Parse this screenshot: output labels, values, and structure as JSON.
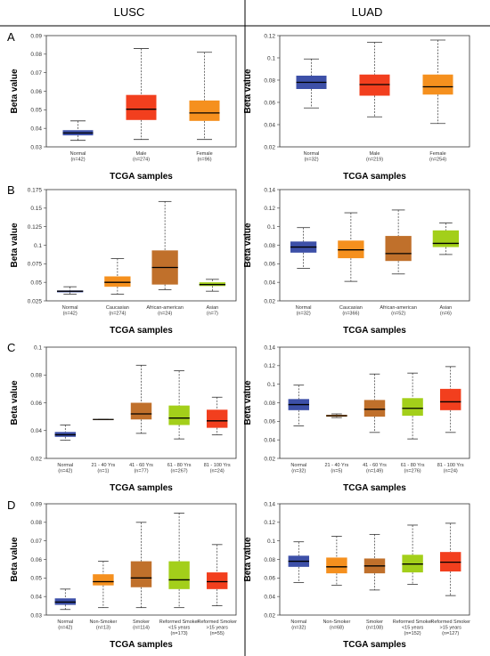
{
  "column_titles": [
    "LUSC",
    "LUAD"
  ],
  "row_labels": [
    "A",
    "B",
    "C",
    "D"
  ],
  "colors": {
    "normal": "#3d50a8",
    "orange": "#f5901e",
    "red": "#f23f1e",
    "brown": "#c0702b",
    "lime": "#a3cf1a",
    "median": "#000000",
    "frame": "#333333"
  },
  "chart_data": [
    {
      "type": "box",
      "panel": "A",
      "cohort": "LUSC",
      "xlabel": "TCGA samples",
      "ylabel": "Beta value",
      "ylim": [
        0.03,
        0.09
      ],
      "yticks": [
        "0.03",
        "0.04",
        "0.05",
        "0.06",
        "0.07",
        "0.08",
        "0.09"
      ],
      "boxes": [
        {
          "label": "Normal",
          "n": "(n=42)",
          "color": "normal",
          "min": 0.0335,
          "q1": 0.0362,
          "median": 0.0375,
          "q3": 0.039,
          "max": 0.044
        },
        {
          "label": "Male",
          "n": "(n=274)",
          "color": "red",
          "min": 0.034,
          "q1": 0.0445,
          "median": 0.0503,
          "q3": 0.058,
          "max": 0.083
        },
        {
          "label": "Female",
          "n": "(n=96)",
          "color": "orange",
          "min": 0.034,
          "q1": 0.044,
          "median": 0.0483,
          "q3": 0.055,
          "max": 0.081
        }
      ]
    },
    {
      "type": "box",
      "panel": "A",
      "cohort": "LUAD",
      "xlabel": "TCGA samples",
      "ylabel": "Beta value",
      "ylim": [
        0.02,
        0.12
      ],
      "yticks": [
        "0.02",
        "0.04",
        "0.06",
        "0.08",
        "0.1",
        "0.12"
      ],
      "boxes": [
        {
          "label": "Normal",
          "n": "(n=32)",
          "color": "normal",
          "min": 0.055,
          "q1": 0.072,
          "median": 0.078,
          "q3": 0.084,
          "max": 0.099
        },
        {
          "label": "Male",
          "n": "(n=219)",
          "color": "red",
          "min": 0.047,
          "q1": 0.066,
          "median": 0.076,
          "q3": 0.085,
          "max": 0.114
        },
        {
          "label": "Female",
          "n": "(n=254)",
          "color": "orange",
          "min": 0.041,
          "q1": 0.067,
          "median": 0.074,
          "q3": 0.085,
          "max": 0.116
        }
      ]
    },
    {
      "type": "box",
      "panel": "B",
      "cohort": "LUSC",
      "xlabel": "TCGA samples",
      "ylabel": "Beta value",
      "ylim": [
        0.025,
        0.175
      ],
      "yticks": [
        "0.025",
        "0.05",
        "0.075",
        "0.1",
        "0.125",
        "0.15",
        "0.175"
      ],
      "boxes": [
        {
          "label": "Normal",
          "n": "(n=42)",
          "color": "normal",
          "min": 0.034,
          "q1": 0.0365,
          "median": 0.038,
          "q3": 0.039,
          "max": 0.044
        },
        {
          "label": "Caucasian",
          "n": "(n=274)",
          "color": "orange",
          "min": 0.034,
          "q1": 0.044,
          "median": 0.05,
          "q3": 0.058,
          "max": 0.082
        },
        {
          "label": "African-american",
          "n": "(n=24)",
          "color": "brown",
          "min": 0.04,
          "q1": 0.047,
          "median": 0.07,
          "q3": 0.093,
          "max": 0.159
        },
        {
          "label": "Asian",
          "n": "(n=7)",
          "color": "lime",
          "min": 0.038,
          "q1": 0.045,
          "median": 0.047,
          "q3": 0.05,
          "max": 0.054
        }
      ]
    },
    {
      "type": "box",
      "panel": "B",
      "cohort": "LUAD",
      "xlabel": "TCGA samples",
      "ylabel": "Beta value",
      "ylim": [
        0.02,
        0.14
      ],
      "yticks": [
        "0.02",
        "0.04",
        "0.06",
        "0.08",
        "0.1",
        "0.12",
        "0.14"
      ],
      "boxes": [
        {
          "label": "Normal",
          "n": "(n=32)",
          "color": "normal",
          "min": 0.055,
          "q1": 0.072,
          "median": 0.078,
          "q3": 0.084,
          "max": 0.099
        },
        {
          "label": "Caucasian",
          "n": "(n=366)",
          "color": "orange",
          "min": 0.041,
          "q1": 0.066,
          "median": 0.075,
          "q3": 0.085,
          "max": 0.115
        },
        {
          "label": "African-american",
          "n": "(n=52)",
          "color": "brown",
          "min": 0.049,
          "q1": 0.063,
          "median": 0.071,
          "q3": 0.09,
          "max": 0.118
        },
        {
          "label": "Asian",
          "n": "(n=6)",
          "color": "lime",
          "min": 0.07,
          "q1": 0.078,
          "median": 0.082,
          "q3": 0.096,
          "max": 0.104
        }
      ]
    },
    {
      "type": "box",
      "panel": "C",
      "cohort": "LUSC",
      "xlabel": "TCGA samples",
      "ylabel": "Beta value",
      "ylim": [
        0.02,
        0.1
      ],
      "yticks": [
        "0.02",
        "0.04",
        "0.06",
        "0.08",
        "0.1"
      ],
      "boxes": [
        {
          "label": "Normal",
          "n": "(n=42)",
          "color": "normal",
          "min": 0.033,
          "q1": 0.0355,
          "median": 0.037,
          "q3": 0.039,
          "max": 0.044
        },
        {
          "label": "21 - 40 Yrs",
          "n": "(n=1)",
          "color": "orange",
          "min": 0.048,
          "q1": 0.048,
          "median": 0.048,
          "q3": 0.048,
          "max": 0.048
        },
        {
          "label": "41 - 60 Yrs",
          "n": "(n=77)",
          "color": "brown",
          "min": 0.038,
          "q1": 0.048,
          "median": 0.052,
          "q3": 0.06,
          "max": 0.087
        },
        {
          "label": "61 - 80 Yrs",
          "n": "(n=267)",
          "color": "lime",
          "min": 0.034,
          "q1": 0.044,
          "median": 0.049,
          "q3": 0.058,
          "max": 0.083
        },
        {
          "label": "81 - 100 Yrs",
          "n": "(n=24)",
          "color": "red",
          "min": 0.037,
          "q1": 0.042,
          "median": 0.047,
          "q3": 0.055,
          "max": 0.064
        }
      ]
    },
    {
      "type": "box",
      "panel": "C",
      "cohort": "LUAD",
      "xlabel": "TCGA samples",
      "ylabel": "Beta value",
      "ylim": [
        0.02,
        0.14
      ],
      "yticks": [
        "0.02",
        "0.04",
        "0.06",
        "0.08",
        "0.1",
        "0.12",
        "0.14"
      ],
      "boxes": [
        {
          "label": "Normal",
          "n": "(n=32)",
          "color": "normal",
          "min": 0.055,
          "q1": 0.072,
          "median": 0.078,
          "q3": 0.084,
          "max": 0.099
        },
        {
          "label": "21 - 40 Yrs",
          "n": "(n=5)",
          "color": "orange",
          "min": 0.064,
          "q1": 0.065,
          "median": 0.066,
          "q3": 0.067,
          "max": 0.068
        },
        {
          "label": "41 - 60 Yrs",
          "n": "(n=149)",
          "color": "brown",
          "min": 0.048,
          "q1": 0.065,
          "median": 0.073,
          "q3": 0.083,
          "max": 0.111
        },
        {
          "label": "61 - 80 Yrs",
          "n": "(n=276)",
          "color": "lime",
          "min": 0.041,
          "q1": 0.066,
          "median": 0.074,
          "q3": 0.085,
          "max": 0.112
        },
        {
          "label": "81 - 100 Yrs",
          "n": "(n=24)",
          "color": "red",
          "min": 0.048,
          "q1": 0.072,
          "median": 0.081,
          "q3": 0.095,
          "max": 0.119
        }
      ]
    },
    {
      "type": "box",
      "panel": "D",
      "cohort": "LUSC",
      "xlabel": "TCGA samples",
      "ylabel": "Beta value",
      "ylim": [
        0.03,
        0.09
      ],
      "yticks": [
        "0.03",
        "0.04",
        "0.05",
        "0.06",
        "0.07",
        "0.08",
        "0.09"
      ],
      "boxes": [
        {
          "label": "Normal",
          "n": "(n=42)",
          "color": "normal",
          "min": 0.033,
          "q1": 0.0355,
          "median": 0.037,
          "q3": 0.039,
          "max": 0.044
        },
        {
          "label": "Non-Smoker",
          "n": "(n=13)",
          "color": "orange",
          "min": 0.034,
          "q1": 0.046,
          "median": 0.048,
          "q3": 0.052,
          "max": 0.059
        },
        {
          "label": "Smoker",
          "n": "(n=114)",
          "color": "brown",
          "min": 0.034,
          "q1": 0.045,
          "median": 0.05,
          "q3": 0.059,
          "max": 0.08
        },
        {
          "label": "Reformed Smoker\n<15 years",
          "n": "(n=173)",
          "color": "lime",
          "min": 0.034,
          "q1": 0.044,
          "median": 0.049,
          "q3": 0.059,
          "max": 0.085
        },
        {
          "label": "Reformed Smoker\n>15 years",
          "n": "(n=55)",
          "color": "red",
          "min": 0.035,
          "q1": 0.044,
          "median": 0.048,
          "q3": 0.053,
          "max": 0.068
        }
      ]
    },
    {
      "type": "box",
      "panel": "D",
      "cohort": "LUAD",
      "xlabel": "TCGA samples",
      "ylabel": "Beta value",
      "ylim": [
        0.02,
        0.14
      ],
      "yticks": [
        "0.02",
        "0.04",
        "0.06",
        "0.08",
        "0.1",
        "0.12",
        "0.14"
      ],
      "boxes": [
        {
          "label": "Normal",
          "n": "(n=32)",
          "color": "normal",
          "min": 0.055,
          "q1": 0.072,
          "median": 0.078,
          "q3": 0.084,
          "max": 0.099
        },
        {
          "label": "Non-Smoker",
          "n": "(n=68)",
          "color": "orange",
          "min": 0.052,
          "q1": 0.065,
          "median": 0.072,
          "q3": 0.082,
          "max": 0.105
        },
        {
          "label": "Smoker",
          "n": "(n=108)",
          "color": "brown",
          "min": 0.047,
          "q1": 0.065,
          "median": 0.073,
          "q3": 0.081,
          "max": 0.107
        },
        {
          "label": "Reformed Smoker\n<15 years",
          "n": "(n=152)",
          "color": "lime",
          "min": 0.053,
          "q1": 0.066,
          "median": 0.075,
          "q3": 0.085,
          "max": 0.117
        },
        {
          "label": "Reformed Smoker\n>15 years",
          "n": "(n=127)",
          "color": "red",
          "min": 0.041,
          "q1": 0.067,
          "median": 0.077,
          "q3": 0.088,
          "max": 0.119
        }
      ]
    }
  ]
}
